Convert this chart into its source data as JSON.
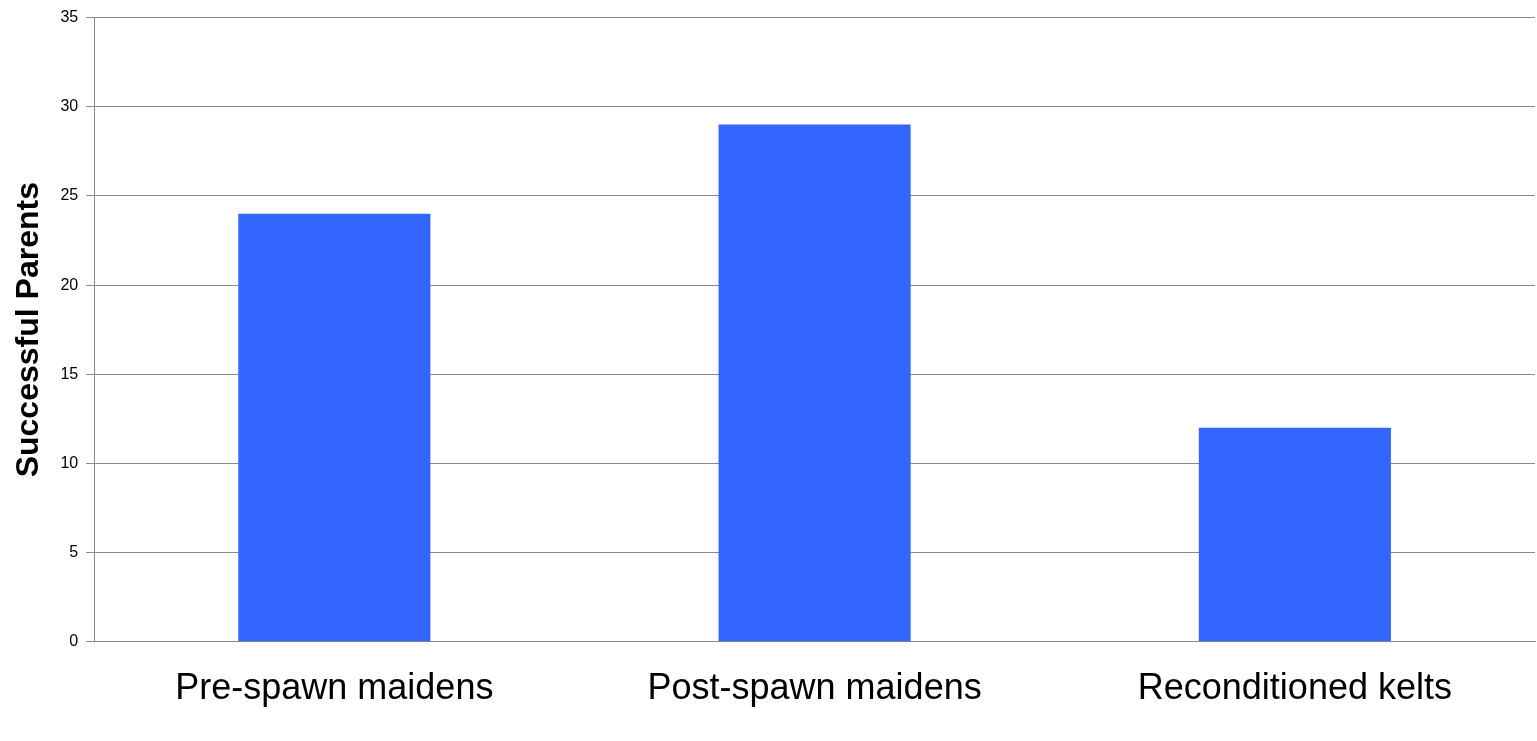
{
  "chart_data": {
    "type": "bar",
    "ylabel": "Successful Parents",
    "categories": [
      "Pre-spawn maidens",
      "Post-spawn maidens",
      "Reconditioned kelts"
    ],
    "values": [
      24,
      29,
      12
    ],
    "color": "#3366ff",
    "ylim": [
      0,
      35
    ],
    "yticks": [
      0,
      5,
      10,
      15,
      20,
      25,
      30,
      35
    ],
    "grid": "y",
    "legend": false
  }
}
